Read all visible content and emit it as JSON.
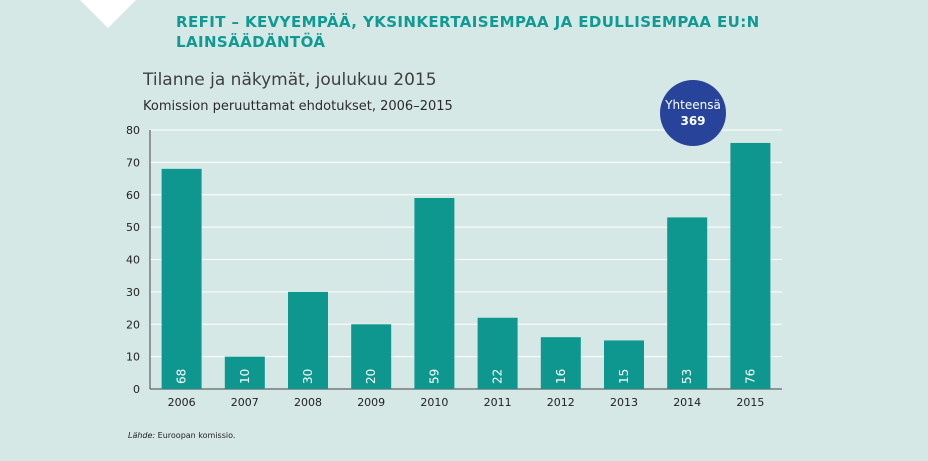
{
  "header": {
    "line1": "REFIT – KEVYEMPÄÄ, YKSINKERTAISEMPAA JA EDULLISEMPAA EU:N",
    "line2": "LAINSÄÄDÄNTÖÄ"
  },
  "badge": {
    "label": "Yhteensä",
    "value": "369",
    "color": "#27449a"
  },
  "source": {
    "label": "Lähde:",
    "text": "Euroopan komissio."
  },
  "colors": {
    "bar": "#0e978f",
    "background": "#d6e8e5",
    "header": "#0f9a93"
  },
  "chart_data": {
    "type": "bar",
    "title": "Tilanne ja näkymät, joulukuu 2015",
    "subtitle": "Komission peruuttamat ehdotukset, 2006–2015",
    "categories": [
      "2006",
      "2007",
      "2008",
      "2009",
      "2010",
      "2011",
      "2012",
      "2013",
      "2014",
      "2015"
    ],
    "values": [
      68,
      10,
      30,
      20,
      59,
      22,
      16,
      15,
      53,
      76
    ],
    "ylim": [
      0,
      80
    ],
    "yticks": [
      0,
      10,
      20,
      30,
      40,
      50,
      60,
      70,
      80
    ],
    "grid": true,
    "data_labels": "inside-bottom-rotated"
  }
}
